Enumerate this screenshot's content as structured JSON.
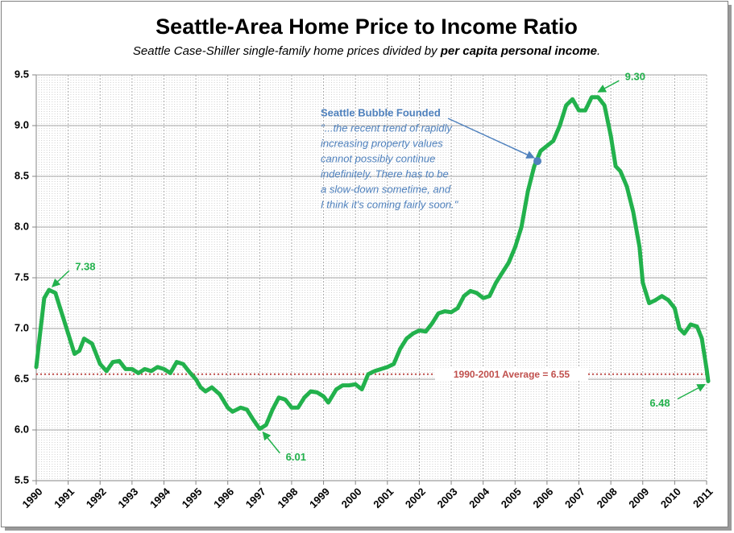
{
  "chart_data": {
    "type": "line",
    "title": "Seattle-Area Home Price to Income Ratio",
    "subtitle": [
      "Seattle Case-Shiller single-family home prices divided by ",
      "per capita personal income",
      "."
    ],
    "xlim": [
      1990,
      2011
    ],
    "xticks": [
      1990,
      1991,
      1992,
      1993,
      1994,
      1995,
      1996,
      1997,
      1998,
      1999,
      2000,
      2001,
      2002,
      2003,
      2004,
      2005,
      2006,
      2007,
      2008,
      2009,
      2010,
      2011
    ],
    "ylim": [
      5.5,
      9.5
    ],
    "yticks": [
      {
        "value": 5.5,
        "label": "5.5"
      },
      {
        "value": 6,
        "label": "6.0"
      },
      {
        "value": 6.5,
        "label": "6.5"
      },
      {
        "value": 7,
        "label": "7.0"
      },
      {
        "value": 7.5,
        "label": "7.5"
      },
      {
        "value": 8,
        "label": "8.0"
      },
      {
        "value": 8.5,
        "label": "8.5"
      },
      {
        "value": 9,
        "label": "9.0"
      },
      {
        "value": 9.5,
        "label": "9.5"
      }
    ],
    "grid": true,
    "series": [
      {
        "name": "Price to Income Ratio",
        "color": "#22b14c",
        "x": [
          1990.0,
          1990.1,
          1990.25,
          1990.4,
          1990.6,
          1990.75,
          1991.0,
          1991.2,
          1991.35,
          1991.5,
          1991.75,
          1992.0,
          1992.2,
          1992.4,
          1992.6,
          1992.8,
          1993.0,
          1993.2,
          1993.4,
          1993.6,
          1993.8,
          1994.0,
          1994.2,
          1994.4,
          1994.6,
          1994.8,
          1995.0,
          1995.15,
          1995.3,
          1995.5,
          1995.75,
          1996.0,
          1996.15,
          1996.4,
          1996.6,
          1996.8,
          1997.0,
          1997.2,
          1997.4,
          1997.6,
          1997.8,
          1998.0,
          1998.2,
          1998.4,
          1998.6,
          1998.8,
          1999.0,
          1999.15,
          1999.4,
          1999.6,
          1999.8,
          2000.0,
          2000.2,
          2000.4,
          2000.6,
          2000.8,
          2001.0,
          2001.2,
          2001.4,
          2001.6,
          2001.8,
          2002.0,
          2002.2,
          2002.4,
          2002.6,
          2002.8,
          2003.0,
          2003.2,
          2003.4,
          2003.6,
          2003.8,
          2004.0,
          2004.2,
          2004.4,
          2004.6,
          2004.8,
          2005.0,
          2005.2,
          2005.4,
          2005.6,
          2005.8,
          2006.0,
          2006.2,
          2006.4,
          2006.6,
          2006.8,
          2007.0,
          2007.2,
          2007.4,
          2007.6,
          2007.8,
          2008.0,
          2008.15,
          2008.3,
          2008.5,
          2008.7,
          2008.9,
          2009.0,
          2009.2,
          2009.4,
          2009.6,
          2009.8,
          2010.0,
          2010.15,
          2010.3,
          2010.5,
          2010.7,
          2010.85,
          2011.0,
          2011.05
        ],
        "values": [
          6.62,
          6.9,
          7.3,
          7.38,
          7.35,
          7.2,
          6.95,
          6.75,
          6.78,
          6.9,
          6.85,
          6.65,
          6.58,
          6.67,
          6.68,
          6.6,
          6.6,
          6.56,
          6.6,
          6.58,
          6.62,
          6.6,
          6.56,
          6.67,
          6.65,
          6.57,
          6.5,
          6.42,
          6.38,
          6.42,
          6.35,
          6.22,
          6.18,
          6.22,
          6.2,
          6.1,
          6.01,
          6.05,
          6.2,
          6.32,
          6.3,
          6.22,
          6.22,
          6.32,
          6.38,
          6.37,
          6.33,
          6.27,
          6.4,
          6.44,
          6.44,
          6.45,
          6.4,
          6.55,
          6.58,
          6.6,
          6.62,
          6.65,
          6.8,
          6.9,
          6.95,
          6.98,
          6.97,
          7.05,
          7.15,
          7.17,
          7.16,
          7.2,
          7.32,
          7.37,
          7.35,
          7.3,
          7.32,
          7.45,
          7.55,
          7.65,
          7.8,
          8.0,
          8.35,
          8.6,
          8.75,
          8.8,
          8.85,
          9.0,
          9.2,
          9.26,
          9.15,
          9.15,
          9.28,
          9.28,
          9.2,
          8.9,
          8.6,
          8.55,
          8.4,
          8.15,
          7.8,
          7.45,
          7.25,
          7.28,
          7.32,
          7.28,
          7.2,
          7.0,
          6.95,
          7.04,
          7.02,
          6.9,
          6.6,
          6.48
        ]
      }
    ],
    "average": {
      "value": 6.55,
      "label": "1990-2001 Average = 6.55",
      "color": "#c0504d"
    },
    "annotations": [
      {
        "text": "7.38",
        "x": 1990.4,
        "y": 7.38
      },
      {
        "text": "6.01",
        "x": 1997.0,
        "y": 6.01
      },
      {
        "text": "9.30",
        "x": 2007.5,
        "y": 9.3
      },
      {
        "text": "6.48",
        "x": 2011.05,
        "y": 6.48
      }
    ],
    "callout": {
      "title": "Seattle Bubble Founded",
      "color": "#4f81bd",
      "x": 2005.7,
      "y": 8.65,
      "quote": [
        "\"...the recent trend of rapidly",
        "increasing property values",
        "cannot possibly continue",
        "indefinitely.  There has to be",
        "a slow-down sometime, and",
        "I think it's coming fairly soon.\""
      ]
    }
  }
}
